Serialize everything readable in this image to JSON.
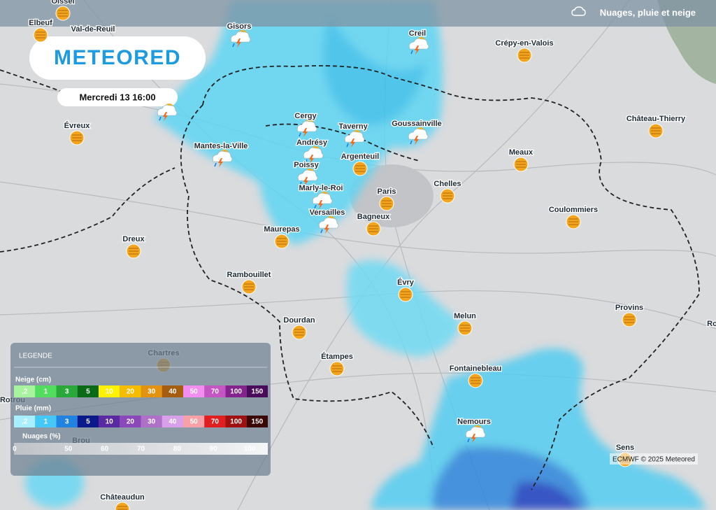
{
  "header": {
    "layer": "Nuages, pluie et neige"
  },
  "logo": {
    "brand": "METEORED"
  },
  "date": "Mercredi 13 16:00",
  "cities": [
    "Oissel",
    "Elbeuf",
    "Val-de-Reuil",
    "Gisors",
    "Creil",
    "Crépy-en-Valois",
    "Évreux",
    "Cergy",
    "Taverny",
    "Goussainville",
    "Château-Thierry",
    "Mantes-la-Ville",
    "Andrésy",
    "Argenteuil",
    "Meaux",
    "Poissy",
    "Paris",
    "Chelles",
    "Marly-le-Roi",
    "Versailles",
    "Bagneux",
    "Coulommiers",
    "Maurepas",
    "Dreux",
    "Rambouillet",
    "Évry",
    "Provins",
    "Melun",
    "Dourdan",
    "Chartres",
    "Étampes",
    "Fontainebleau",
    "Nemours",
    "Sens",
    "Châteaudun",
    "Rotrou",
    "Brou",
    "Roi"
  ],
  "legend": {
    "title": "LEGENDE",
    "snow": {
      "title": "Neige (cm)",
      "labels": [
        ",2",
        "1",
        "3",
        "5",
        "10",
        "20",
        "30",
        "40",
        "50",
        "70",
        "100",
        "150"
      ],
      "colors": [
        "#a6f59e",
        "#52dd5e",
        "#2aa93a",
        "#0a6a18",
        "#fff200",
        "#f6bd00",
        "#e39312",
        "#a55d12",
        "#f28ef0",
        "#c456c4",
        "#85238e",
        "#4a0a5a"
      ]
    },
    "rain": {
      "title": "Pluie (mm)",
      "labels": [
        ",2",
        "1",
        "3",
        "5",
        "10",
        "20",
        "30",
        "40",
        "50",
        "70",
        "100",
        "150"
      ],
      "colors": [
        "#a8f0ff",
        "#45c8f8",
        "#2182e0",
        "#0a1a8a",
        "#5a2aa0",
        "#8a48b8",
        "#b070c8",
        "#d8a0e8",
        "#f8a0a8",
        "#e02020",
        "#a01010",
        "#3a0606"
      ]
    },
    "clouds": {
      "title": "Nuages (%)",
      "labels": [
        "0",
        "50",
        "60",
        "70",
        "80",
        "90",
        "100"
      ]
    }
  },
  "credit": "ECMWF © 2025 Meteored"
}
